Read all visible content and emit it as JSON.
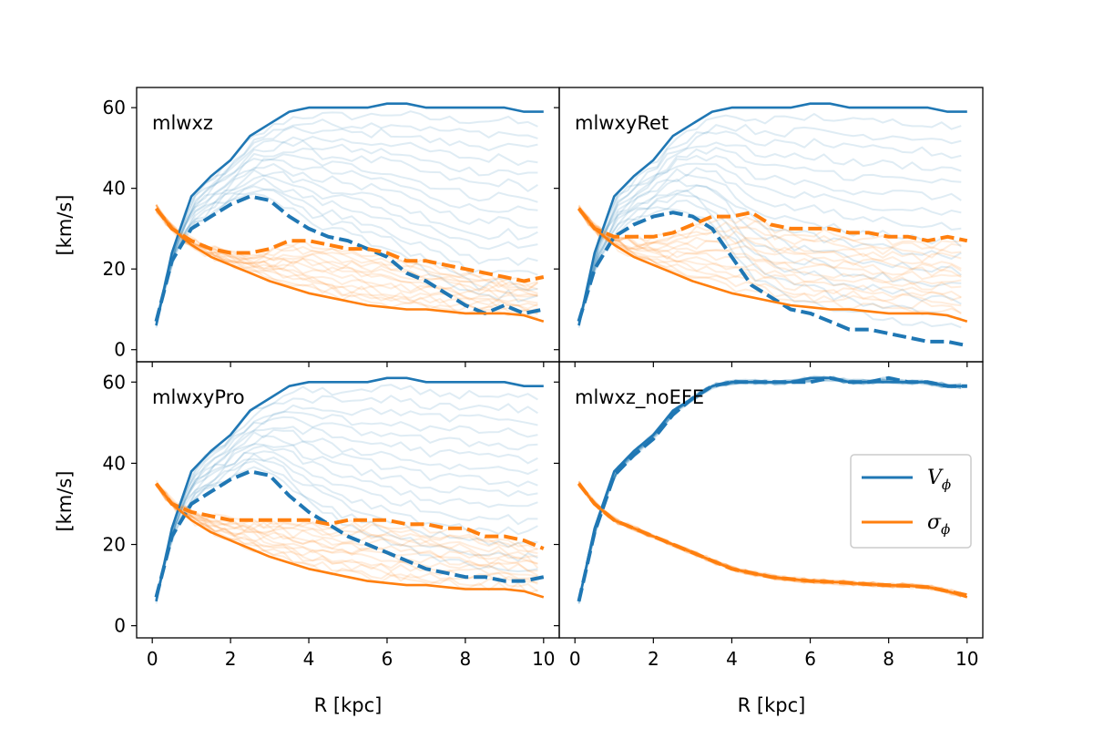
{
  "chart_data": {
    "type": "line",
    "layout": "2x2 grid, shared axes",
    "xlabel": "R [kpc]",
    "ylabel": "[km/s]",
    "xlim": [
      -0.4,
      10.4
    ],
    "ylim": [
      -3,
      65
    ],
    "xticks": [
      0,
      2,
      4,
      6,
      8,
      10
    ],
    "yticks": [
      0,
      20,
      40,
      60
    ],
    "colors": {
      "V_phi": "#1f77b4",
      "sigma_phi": "#ff7f0e"
    },
    "legend": {
      "placement": "right (bottom-right panel)",
      "entries": [
        {
          "label": "V",
          "sub": "ϕ",
          "series": "V_phi"
        },
        {
          "label": "σ",
          "sub": "ϕ",
          "series": "sigma_phi"
        }
      ]
    },
    "panels": [
      {
        "title": "mlwxz",
        "series": [
          {
            "name": "V_phi initial",
            "style": "solid",
            "x": [
              0.1,
              0.5,
              1,
              1.5,
              2,
              2.5,
              3,
              3.5,
              4,
              4.5,
              5,
              5.5,
              6,
              6.5,
              7,
              7.5,
              8,
              8.5,
              9,
              9.5,
              10
            ],
            "y": [
              6,
              24,
              38,
              43,
              47,
              53,
              56,
              59,
              60,
              60,
              60,
              60,
              61,
              61,
              60,
              60,
              60,
              60,
              60,
              59,
              59
            ]
          },
          {
            "name": "V_phi final",
            "style": "dashed",
            "x": [
              0.1,
              0.5,
              1,
              1.5,
              2,
              2.5,
              3,
              3.5,
              4,
              4.5,
              5,
              5.5,
              6,
              6.5,
              7,
              7.5,
              8,
              8.5,
              9,
              9.5,
              10
            ],
            "y": [
              7,
              22,
              30,
              33,
              36,
              38,
              37,
              33,
              30,
              28,
              27,
              25,
              23,
              19,
              17,
              14,
              11,
              9,
              11,
              9,
              10
            ]
          },
          {
            "name": "sigma_phi initial",
            "style": "solid",
            "x": [
              0.1,
              0.5,
              1,
              1.5,
              2,
              2.5,
              3,
              3.5,
              4,
              4.5,
              5,
              5.5,
              6,
              6.5,
              7,
              7.5,
              8,
              8.5,
              9,
              9.5,
              10
            ],
            "y": [
              35,
              30,
              26,
              23,
              21,
              19,
              17,
              15.5,
              14,
              13,
              12,
              11,
              10.5,
              10,
              10,
              9.5,
              9,
              9,
              9,
              8.5,
              7
            ]
          },
          {
            "name": "sigma_phi final",
            "style": "dashed",
            "x": [
              0.1,
              0.5,
              1,
              1.5,
              2,
              2.5,
              3,
              3.5,
              4,
              4.5,
              5,
              5.5,
              6,
              6.5,
              7,
              7.5,
              8,
              8.5,
              9,
              9.5,
              10
            ],
            "y": [
              35,
              30,
              27,
              25,
              24,
              24,
              25,
              27,
              27,
              26,
              25,
              25,
              24,
              22,
              22,
              21,
              20,
              19,
              18,
              17,
              18
            ]
          }
        ]
      },
      {
        "title": "mlwxyRet",
        "series": [
          {
            "name": "V_phi initial",
            "style": "solid",
            "x": [
              0.1,
              0.5,
              1,
              1.5,
              2,
              2.5,
              3,
              3.5,
              4,
              4.5,
              5,
              5.5,
              6,
              6.5,
              7,
              7.5,
              8,
              8.5,
              9,
              9.5,
              10
            ],
            "y": [
              6,
              24,
              38,
              43,
              47,
              53,
              56,
              59,
              60,
              60,
              60,
              60,
              61,
              61,
              60,
              60,
              60,
              60,
              60,
              59,
              59
            ]
          },
          {
            "name": "V_phi final",
            "style": "dashed",
            "x": [
              0.1,
              0.5,
              1,
              1.5,
              2,
              2.5,
              3,
              3.5,
              4,
              4.5,
              5,
              5.5,
              6,
              6.5,
              7,
              7.5,
              8,
              8.5,
              9,
              9.5,
              10
            ],
            "y": [
              7,
              20,
              28,
              31,
              33,
              34,
              33,
              30,
              23,
              16,
              13,
              10,
              9,
              7,
              5,
              5,
              4,
              3,
              2,
              2,
              1
            ]
          },
          {
            "name": "sigma_phi initial",
            "style": "solid",
            "x": [
              0.1,
              0.5,
              1,
              1.5,
              2,
              2.5,
              3,
              3.5,
              4,
              4.5,
              5,
              5.5,
              6,
              6.5,
              7,
              7.5,
              8,
              8.5,
              9,
              9.5,
              10
            ],
            "y": [
              35,
              30,
              26,
              23,
              21,
              19,
              17,
              15.5,
              14,
              13,
              12,
              11,
              10.5,
              10,
              10,
              9.5,
              9,
              9,
              9,
              8.5,
              7
            ]
          },
          {
            "name": "sigma_phi final",
            "style": "dashed",
            "x": [
              0.1,
              0.5,
              1,
              1.5,
              2,
              2.5,
              3,
              3.5,
              4,
              4.5,
              5,
              5.5,
              6,
              6.5,
              7,
              7.5,
              8,
              8.5,
              9,
              9.5,
              10
            ],
            "y": [
              35,
              30,
              28,
              28,
              28,
              29,
              31,
              33,
              33,
              34,
              31,
              30,
              30,
              30,
              29,
              29,
              28,
              28,
              27,
              28,
              27
            ]
          }
        ]
      },
      {
        "title": "mlwxyPro",
        "series": [
          {
            "name": "V_phi initial",
            "style": "solid",
            "x": [
              0.1,
              0.5,
              1,
              1.5,
              2,
              2.5,
              3,
              3.5,
              4,
              4.5,
              5,
              5.5,
              6,
              6.5,
              7,
              7.5,
              8,
              8.5,
              9,
              9.5,
              10
            ],
            "y": [
              6,
              24,
              38,
              43,
              47,
              53,
              56,
              59,
              60,
              60,
              60,
              60,
              61,
              61,
              60,
              60,
              60,
              60,
              60,
              59,
              59
            ]
          },
          {
            "name": "V_phi final",
            "style": "dashed",
            "x": [
              0.1,
              0.5,
              1,
              1.5,
              2,
              2.5,
              3,
              3.5,
              4,
              4.5,
              5,
              5.5,
              6,
              6.5,
              7,
              7.5,
              8,
              8.5,
              9,
              9.5,
              10
            ],
            "y": [
              7,
              22,
              30,
              33,
              36,
              38,
              37,
              32,
              28,
              25,
              22,
              20,
              18,
              16,
              14,
              13,
              12,
              12,
              11,
              11,
              12
            ]
          },
          {
            "name": "sigma_phi initial",
            "style": "solid",
            "x": [
              0.1,
              0.5,
              1,
              1.5,
              2,
              2.5,
              3,
              3.5,
              4,
              4.5,
              5,
              5.5,
              6,
              6.5,
              7,
              7.5,
              8,
              8.5,
              9,
              9.5,
              10
            ],
            "y": [
              35,
              30,
              26,
              23,
              21,
              19,
              17,
              15.5,
              14,
              13,
              12,
              11,
              10.5,
              10,
              10,
              9.5,
              9,
              9,
              9,
              8.5,
              7
            ]
          },
          {
            "name": "sigma_phi final",
            "style": "dashed",
            "x": [
              0.1,
              0.5,
              1,
              1.5,
              2,
              2.5,
              3,
              3.5,
              4,
              4.5,
              5,
              5.5,
              6,
              6.5,
              7,
              7.5,
              8,
              8.5,
              9,
              9.5,
              10
            ],
            "y": [
              35,
              30,
              28,
              27,
              26,
              26,
              26,
              26,
              26,
              25,
              26,
              26,
              26,
              25,
              25,
              24,
              24,
              22,
              22,
              21,
              19
            ]
          }
        ]
      },
      {
        "title": "mlwxz_noEFE",
        "series": [
          {
            "name": "V_phi initial",
            "style": "solid",
            "x": [
              0.1,
              0.5,
              1,
              1.5,
              2,
              2.5,
              3,
              3.5,
              4,
              4.5,
              5,
              5.5,
              6,
              6.5,
              7,
              7.5,
              8,
              8.5,
              9,
              9.5,
              10
            ],
            "y": [
              6,
              24,
              38,
              43,
              47,
              53,
              56,
              59,
              60,
              60,
              60,
              60,
              61,
              61,
              60,
              60,
              60,
              60,
              60,
              59,
              59
            ]
          },
          {
            "name": "V_phi final",
            "style": "dashed",
            "x": [
              0.1,
              0.5,
              1,
              1.5,
              2,
              2.5,
              3,
              3.5,
              4,
              4.5,
              5,
              5.5,
              6,
              6.5,
              7,
              7.5,
              8,
              8.5,
              9,
              9.5,
              10
            ],
            "y": [
              6,
              23,
              37,
              42,
              46,
              52,
              56,
              59,
              60,
              60,
              60,
              60,
              60,
              61,
              60,
              60,
              61,
              60,
              60,
              59,
              59
            ]
          },
          {
            "name": "sigma_phi initial",
            "style": "solid",
            "x": [
              0.1,
              0.5,
              1,
              1.5,
              2,
              2.5,
              3,
              3.5,
              4,
              4.5,
              5,
              5.5,
              6,
              6.5,
              7,
              7.5,
              8,
              8.5,
              9,
              9.5,
              10
            ],
            "y": [
              35,
              30,
              26,
              24,
              22,
              20,
              18,
              16,
              14,
              13,
              12,
              11.5,
              11,
              10.8,
              10.5,
              10.2,
              10,
              9.8,
              9.5,
              8.5,
              7
            ]
          },
          {
            "name": "sigma_phi final",
            "style": "dashed",
            "x": [
              0.1,
              0.5,
              1,
              1.5,
              2,
              2.5,
              3,
              3.5,
              4,
              4.5,
              5,
              5.5,
              6,
              6.5,
              7,
              7.5,
              8,
              8.5,
              9,
              9.5,
              10
            ],
            "y": [
              35,
              30,
              26,
              24,
              22,
              20,
              18,
              16,
              14,
              13,
              12,
              11.5,
              11,
              10.8,
              10.5,
              10.2,
              10,
              9.8,
              9.5,
              8.5,
              7.5
            ]
          }
        ]
      }
    ]
  }
}
